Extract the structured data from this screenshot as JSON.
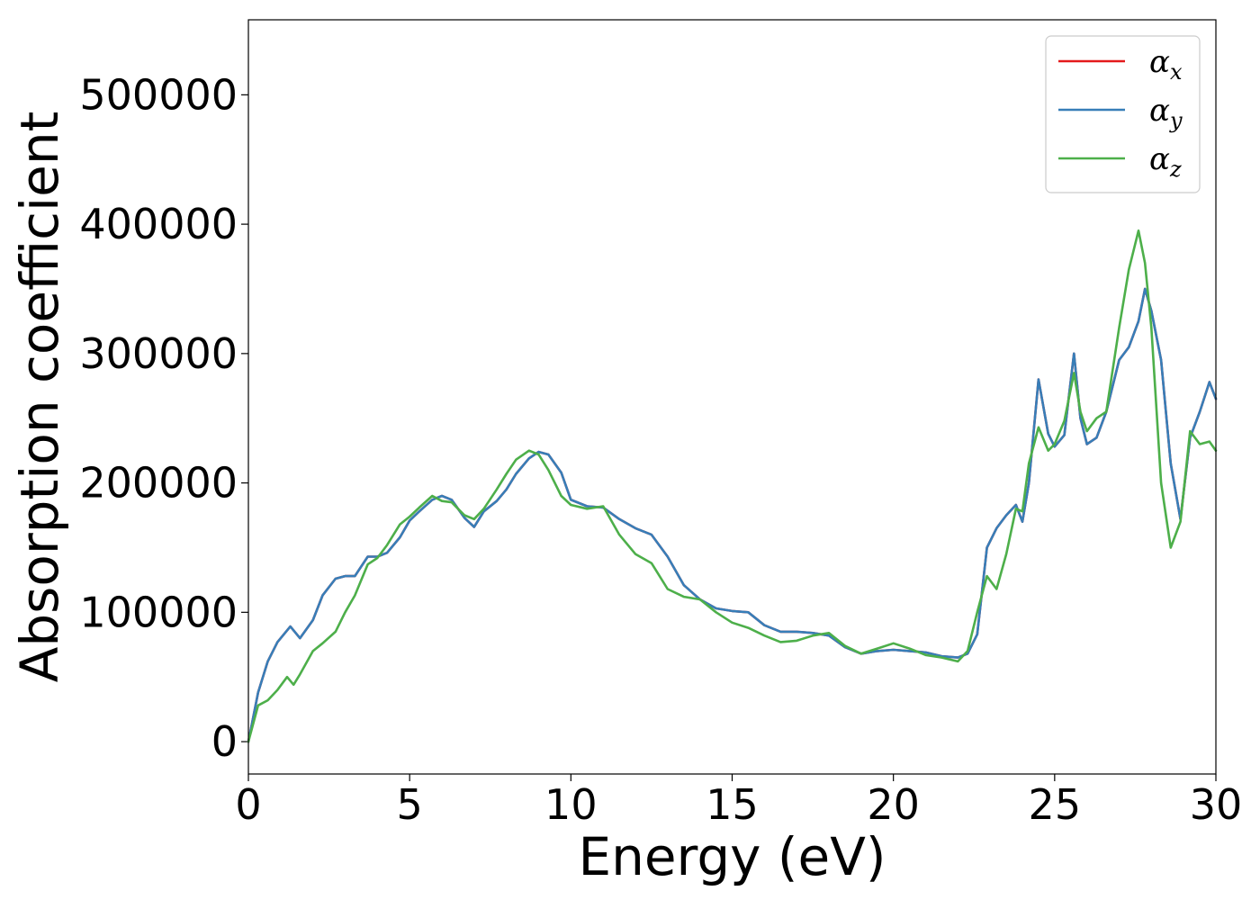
{
  "chart_data": {
    "type": "line",
    "title": "",
    "xlabel": "Energy (eV)",
    "ylabel": "Absorption coefficient",
    "xlim": [
      0,
      30
    ],
    "ylim": [
      -25000,
      558000
    ],
    "xticks": [
      0,
      5,
      10,
      15,
      20,
      25,
      30
    ],
    "yticks": [
      0,
      100000,
      200000,
      300000,
      400000,
      500000
    ],
    "grid": false,
    "legend_position": "top-right",
    "series": [
      {
        "name": "α",
        "sub": "x",
        "color": "#e41a1c",
        "x": [
          0,
          0.3,
          0.6,
          0.9,
          1.3,
          1.6,
          2.0,
          2.3,
          2.7,
          3.0,
          3.3,
          3.7,
          4.0,
          4.3,
          4.7,
          5.0,
          5.3,
          5.7,
          6.0,
          6.3,
          6.7,
          7.0,
          7.3,
          7.7,
          8.0,
          8.3,
          8.7,
          9.0,
          9.3,
          9.7,
          10.0,
          10.5,
          11.0,
          11.5,
          12.0,
          12.5,
          13.0,
          13.5,
          14.0,
          14.5,
          15.0,
          15.5,
          16.0,
          16.5,
          17.0,
          17.5,
          18.0,
          18.5,
          19.0,
          19.5,
          20.0,
          20.5,
          21.0,
          21.5,
          22.0,
          22.3,
          22.6,
          22.9,
          23.2,
          23.5,
          23.8,
          24.0,
          24.2,
          24.5,
          24.8,
          25.0,
          25.3,
          25.6,
          25.8,
          26.0,
          26.3,
          26.6,
          27.0,
          27.3,
          27.6,
          27.8,
          28.0,
          28.3,
          28.6,
          28.9,
          29.2,
          29.5,
          29.8,
          30.0
        ],
        "values": [
          0,
          38000,
          62000,
          77000,
          89000,
          80000,
          94000,
          113000,
          126000,
          128000,
          128000,
          143000,
          143000,
          146000,
          158000,
          171000,
          178000,
          187000,
          190000,
          187000,
          173000,
          166000,
          178000,
          186000,
          195000,
          207000,
          219000,
          224000,
          222000,
          208000,
          187000,
          182000,
          181000,
          172000,
          165000,
          160000,
          143000,
          121000,
          110000,
          103000,
          101000,
          100000,
          90000,
          85000,
          85000,
          84000,
          82000,
          73000,
          68000,
          70000,
          71000,
          70000,
          69000,
          66000,
          65000,
          68000,
          83000,
          150000,
          165000,
          175000,
          183000,
          170000,
          200000,
          280000,
          238000,
          228000,
          237000,
          300000,
          250000,
          230000,
          235000,
          255000,
          295000,
          305000,
          325000,
          350000,
          333000,
          295000,
          215000,
          172000,
          235000,
          255000,
          278000,
          265000
        ]
      },
      {
        "name": "α",
        "sub": "y",
        "color": "#377eb8",
        "x": [
          0,
          0.3,
          0.6,
          0.9,
          1.3,
          1.6,
          2.0,
          2.3,
          2.7,
          3.0,
          3.3,
          3.7,
          4.0,
          4.3,
          4.7,
          5.0,
          5.3,
          5.7,
          6.0,
          6.3,
          6.7,
          7.0,
          7.3,
          7.7,
          8.0,
          8.3,
          8.7,
          9.0,
          9.3,
          9.7,
          10.0,
          10.5,
          11.0,
          11.5,
          12.0,
          12.5,
          13.0,
          13.5,
          14.0,
          14.5,
          15.0,
          15.5,
          16.0,
          16.5,
          17.0,
          17.5,
          18.0,
          18.5,
          19.0,
          19.5,
          20.0,
          20.5,
          21.0,
          21.5,
          22.0,
          22.3,
          22.6,
          22.9,
          23.2,
          23.5,
          23.8,
          24.0,
          24.2,
          24.5,
          24.8,
          25.0,
          25.3,
          25.6,
          25.8,
          26.0,
          26.3,
          26.6,
          27.0,
          27.3,
          27.6,
          27.8,
          28.0,
          28.3,
          28.6,
          28.9,
          29.2,
          29.5,
          29.8,
          30.0
        ],
        "values": [
          0,
          38000,
          62000,
          77000,
          89000,
          80000,
          94000,
          113000,
          126000,
          128000,
          128000,
          143000,
          143000,
          146000,
          158000,
          171000,
          178000,
          187000,
          190000,
          187000,
          173000,
          166000,
          178000,
          186000,
          195000,
          207000,
          219000,
          224000,
          222000,
          208000,
          187000,
          182000,
          181000,
          172000,
          165000,
          160000,
          143000,
          121000,
          110000,
          103000,
          101000,
          100000,
          90000,
          85000,
          85000,
          84000,
          82000,
          73000,
          68000,
          70000,
          71000,
          70000,
          69000,
          66000,
          65000,
          68000,
          83000,
          150000,
          165000,
          175000,
          183000,
          170000,
          200000,
          280000,
          238000,
          228000,
          237000,
          300000,
          250000,
          230000,
          235000,
          255000,
          295000,
          305000,
          325000,
          350000,
          333000,
          295000,
          215000,
          172000,
          235000,
          255000,
          278000,
          265000
        ]
      },
      {
        "name": "α",
        "sub": "z",
        "color": "#4daf4a",
        "x": [
          0,
          0.3,
          0.6,
          0.9,
          1.2,
          1.4,
          1.6,
          2.0,
          2.3,
          2.7,
          3.0,
          3.3,
          3.7,
          4.0,
          4.3,
          4.7,
          5.0,
          5.3,
          5.7,
          6.0,
          6.3,
          6.7,
          7.0,
          7.3,
          7.7,
          8.0,
          8.3,
          8.7,
          9.0,
          9.3,
          9.7,
          10.0,
          10.5,
          11.0,
          11.5,
          12.0,
          12.5,
          13.0,
          13.5,
          14.0,
          14.5,
          15.0,
          15.5,
          16.0,
          16.5,
          17.0,
          17.5,
          18.0,
          18.5,
          19.0,
          19.5,
          20.0,
          20.5,
          21.0,
          21.5,
          22.0,
          22.3,
          22.6,
          22.9,
          23.2,
          23.5,
          23.8,
          24.0,
          24.2,
          24.5,
          24.8,
          25.0,
          25.3,
          25.6,
          25.8,
          26.0,
          26.3,
          26.6,
          27.0,
          27.3,
          27.6,
          27.8,
          28.0,
          28.3,
          28.6,
          28.9,
          29.2,
          29.5,
          29.8,
          30.0
        ],
        "values": [
          0,
          28000,
          32000,
          40000,
          50000,
          44000,
          52000,
          70000,
          76000,
          85000,
          100000,
          113000,
          137000,
          142000,
          152000,
          168000,
          174000,
          181000,
          190000,
          186000,
          185000,
          175000,
          172000,
          180000,
          195000,
          207000,
          218000,
          225000,
          222000,
          210000,
          190000,
          183000,
          180000,
          182000,
          160000,
          145000,
          138000,
          118000,
          112000,
          110000,
          100000,
          92000,
          88000,
          82000,
          77000,
          78000,
          82000,
          84000,
          74000,
          68000,
          72000,
          76000,
          72000,
          67000,
          65000,
          62000,
          70000,
          100000,
          128000,
          118000,
          145000,
          180000,
          178000,
          215000,
          243000,
          225000,
          230000,
          248000,
          285000,
          255000,
          240000,
          250000,
          255000,
          320000,
          365000,
          395000,
          370000,
          320000,
          200000,
          150000,
          170000,
          240000,
          230000,
          232000,
          225000
        ]
      }
    ]
  }
}
